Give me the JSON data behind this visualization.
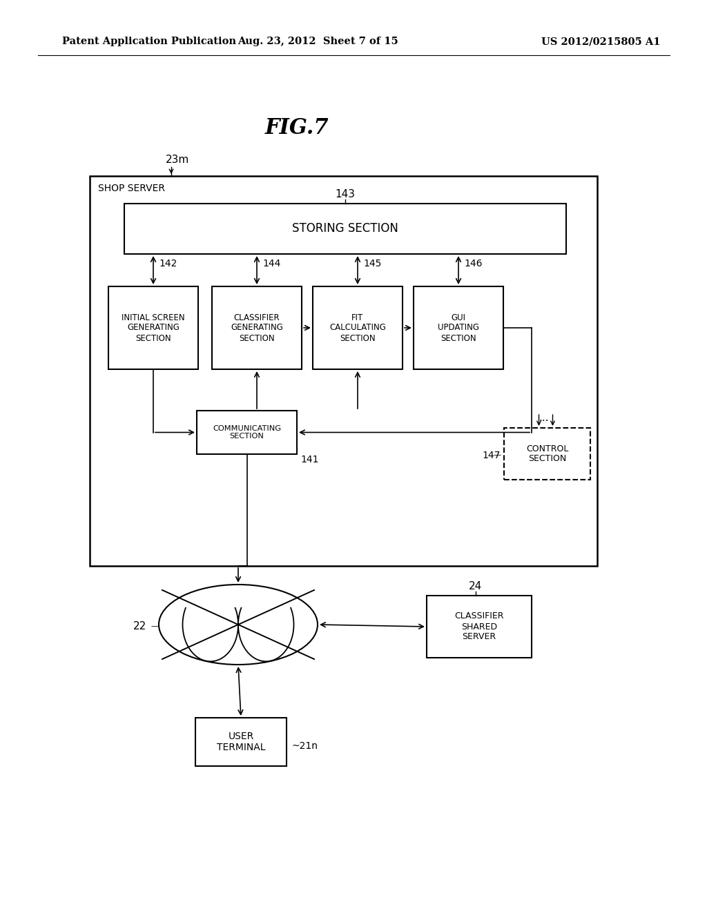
{
  "header_left": "Patent Application Publication",
  "header_mid": "Aug. 23, 2012  Sheet 7 of 15",
  "header_right": "US 2012/0215805 A1",
  "fig_title": "FIG.7",
  "shop_server_label": "SHOP SERVER",
  "shop_server_ref": "23m",
  "storing_section_label": "STORING SECTION",
  "storing_section_ref": "143",
  "box1_label": "INITIAL SCREEN\nGENERATING\nSECTION",
  "box1_ref": "142",
  "box2_label": "CLASSIFIER\nGENERATING\nSECTION",
  "box2_ref": "144",
  "box3_label": "FIT\nCALCULATING\nSECTION",
  "box3_ref": "145",
  "box4_label": "GUI\nUPDATING\nSECTION",
  "box4_ref": "146",
  "comm_label": "COMMUNICATING\nSECTION",
  "comm_ref": "141",
  "control_label": "CONTROL\nSECTION",
  "control_ref": "147",
  "network_ref": "22",
  "classifier_shared_label": "CLASSIFIER\nSHARED\nSERVER",
  "classifier_shared_ref": "24",
  "user_terminal_label": "USER\nTERMINAL",
  "user_terminal_ref": "21n",
  "bg_color": "#ffffff",
  "text_color": "#000000"
}
